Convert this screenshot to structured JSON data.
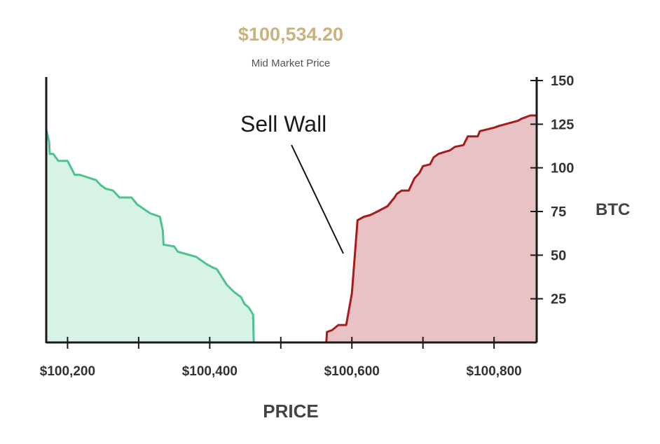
{
  "header": {
    "mid_price": "$100,534.20",
    "mid_price_label": "Mid Market Price"
  },
  "colors": {
    "mid_price": "#c9b27c",
    "bid_line": "#4ec28f",
    "bid_fill": "#d6f3e5",
    "ask_line": "#a51c1c",
    "ask_fill": "#e8c2c4",
    "axis": "#1a1a1a"
  },
  "chart_data": {
    "type": "area",
    "xlabel": "PRICE",
    "ylabel": "BTC",
    "xlim": [
      100170,
      100860
    ],
    "ylim": [
      0,
      152
    ],
    "x_ticks": [
      100200,
      100300,
      100400,
      100500,
      100600,
      100700,
      100800
    ],
    "x_tick_labels": [
      "$100,200",
      "",
      "$100,400",
      "",
      "$100,600",
      "",
      "$100,800"
    ],
    "y_ticks": [
      25,
      50,
      75,
      100,
      125,
      150
    ],
    "y_tick_labels": [
      "25",
      "50",
      "75",
      "100",
      "125",
      "150"
    ],
    "annotation": "Sell Wall",
    "series": [
      {
        "side": "bid",
        "x": [
          100170,
          100174,
          100175,
          100180,
          100187,
          100200,
          100210,
          100217,
          100240,
          100247,
          100254,
          100264,
          100273,
          100290,
          100298,
          100316,
          100330,
          100334,
          100335,
          100350,
          100355,
          100381,
          100395,
          100404,
          100410,
          100424,
          100434,
          100444,
          100449,
          100455,
          100461,
          100462
        ],
        "y": [
          122,
          115,
          108,
          108,
          104,
          104,
          96,
          96,
          93,
          90,
          88,
          87,
          83,
          83,
          79,
          74,
          72,
          64,
          56,
          55,
          52,
          49,
          45,
          43,
          42,
          33,
          29,
          26,
          22,
          20,
          16,
          0
        ]
      },
      {
        "side": "ask",
        "x": [
          100564,
          100565,
          100572,
          100581,
          100592,
          100600,
          100608,
          100617,
          100626,
          100631,
          100636,
          100650,
          100660,
          100663,
          100670,
          100680,
          100688,
          100695,
          100700,
          100710,
          100715,
          100722,
          100738,
          100745,
          100757,
          100763,
          100777,
          100780,
          100800,
          100807,
          100834,
          100838,
          100851,
          100860
        ],
        "y": [
          0,
          6,
          7,
          10,
          10,
          28,
          70,
          72,
          73,
          74,
          75,
          78,
          83,
          85,
          87,
          87,
          94,
          97,
          101,
          102,
          106,
          108,
          110,
          112,
          113,
          118,
          118,
          121,
          123,
          124,
          127,
          128,
          130,
          130
        ]
      }
    ]
  }
}
